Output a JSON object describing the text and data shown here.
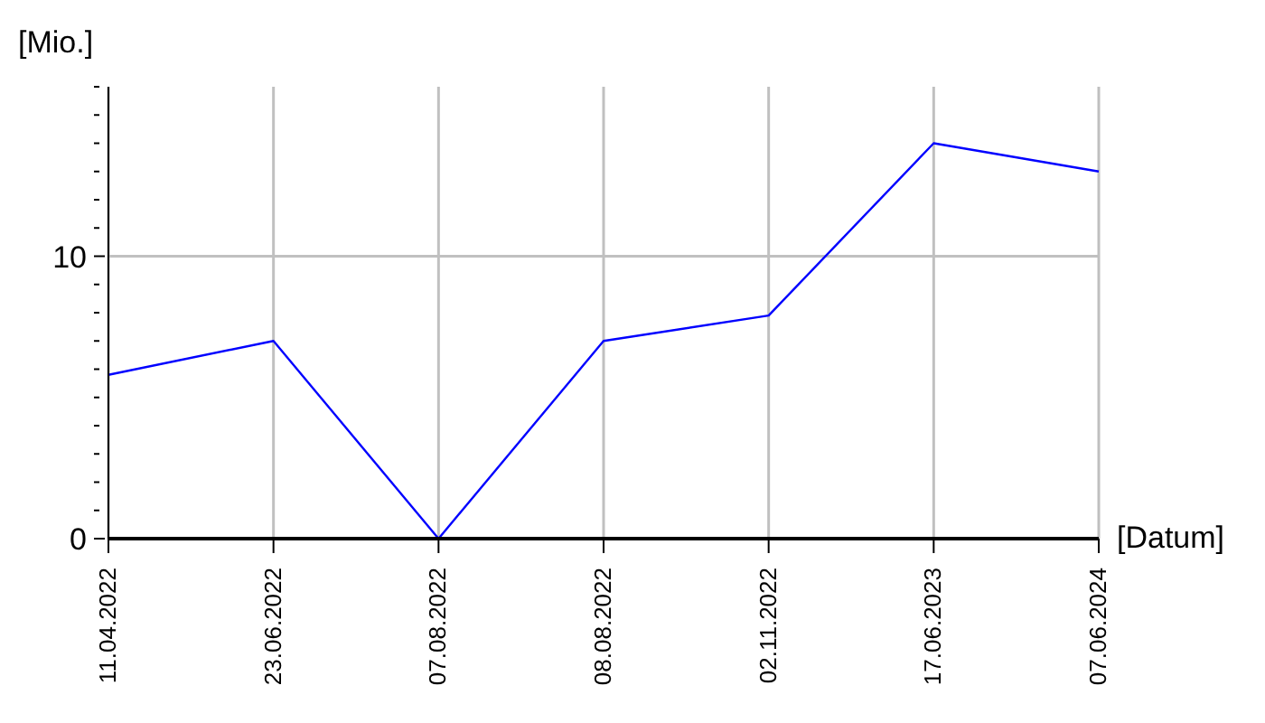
{
  "chart_data": {
    "type": "line",
    "ylabel": "[Mio.]",
    "xlabel": "[Datum]",
    "categories": [
      "11.04.2022",
      "23.06.2022",
      "07.08.2022",
      "08.08.2022",
      "02.11.2022",
      "17.06.2023",
      "07.06.2024"
    ],
    "series": [
      {
        "color": "#0000ff",
        "values": [
          5.8,
          7,
          0,
          7,
          7.9,
          14,
          13
        ]
      }
    ],
    "ylim": [
      0,
      16
    ],
    "yticks": [
      0,
      {
        "value": 1,
        "label": null
      },
      {
        "value": 2,
        "label": null
      },
      {
        "value": 3,
        "label": null
      },
      {
        "value": 4,
        "label": null
      },
      {
        "value": 5,
        "label": null
      },
      {
        "value": 6,
        "label": null
      },
      {
        "value": 7,
        "label": null
      },
      {
        "value": 8,
        "label": null
      },
      {
        "value": 9,
        "label": null
      },
      10,
      {
        "value": 11,
        "label": null
      },
      {
        "value": 12,
        "label": null
      },
      {
        "value": 13,
        "label": null
      },
      {
        "value": 14,
        "label": null
      },
      {
        "value": 15,
        "label": null
      },
      {
        "value": 16,
        "label": null
      }
    ],
    "grid": true,
    "legend": false,
    "marker": "none",
    "line_style": "solid"
  }
}
